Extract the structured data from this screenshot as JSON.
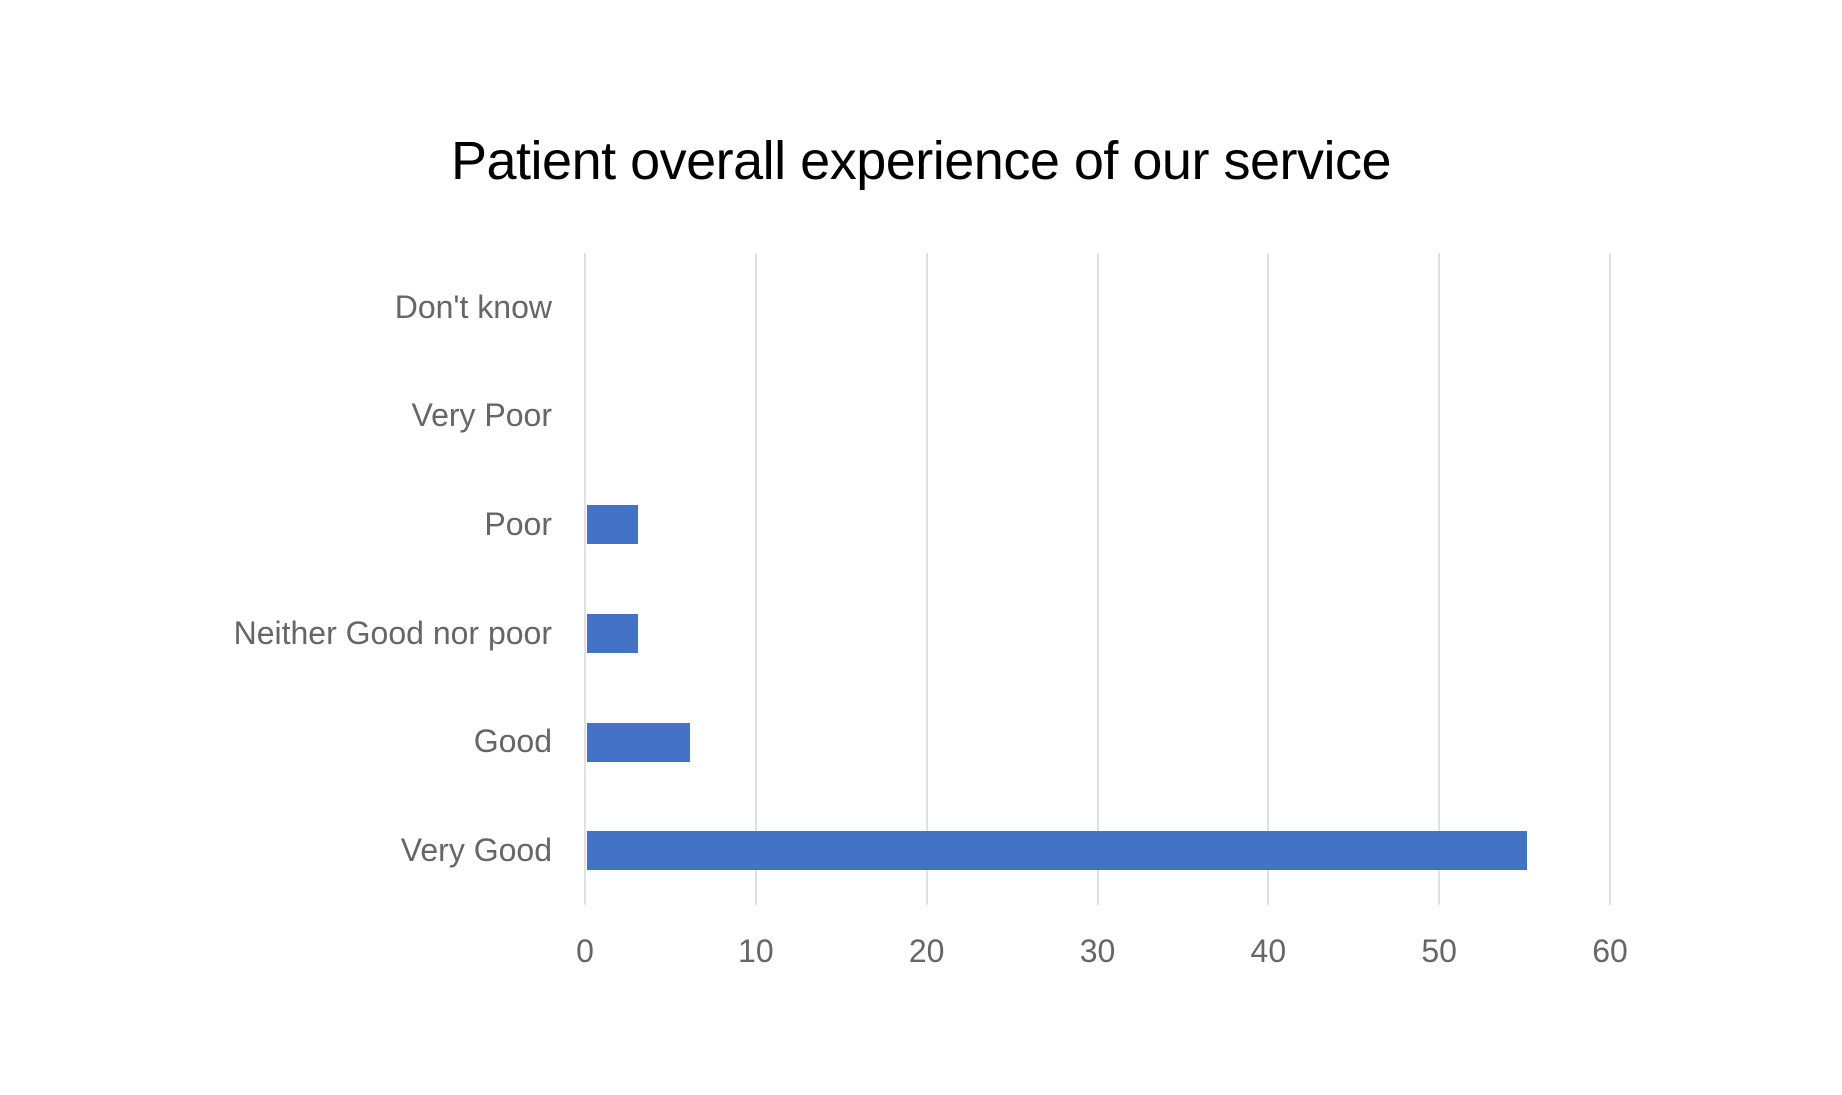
{
  "page": {
    "background": "#FFFFFF"
  },
  "chart_data": {
    "type": "bar",
    "orientation": "horizontal",
    "title": "Patient overall experience of our service",
    "categories": [
      "Don't know",
      "Very Poor",
      "Poor",
      "Neither Good nor poor",
      "Good",
      "Very Good"
    ],
    "values": [
      0,
      0,
      3,
      3,
      6,
      55
    ],
    "xlabel": "",
    "ylabel": "",
    "xlim": [
      0,
      60
    ],
    "xticks": [
      0,
      10,
      20,
      30,
      40,
      50,
      60
    ],
    "grid": true,
    "legend": false,
    "data_labels": false,
    "colors": {
      "bar": "#4472C4",
      "gridline": "#E1E1E1",
      "axis_line": "#E1E1E1",
      "tick_label": "#666666",
      "category_label": "#666666",
      "title": "#000000",
      "background": "#FFFFFF"
    }
  }
}
